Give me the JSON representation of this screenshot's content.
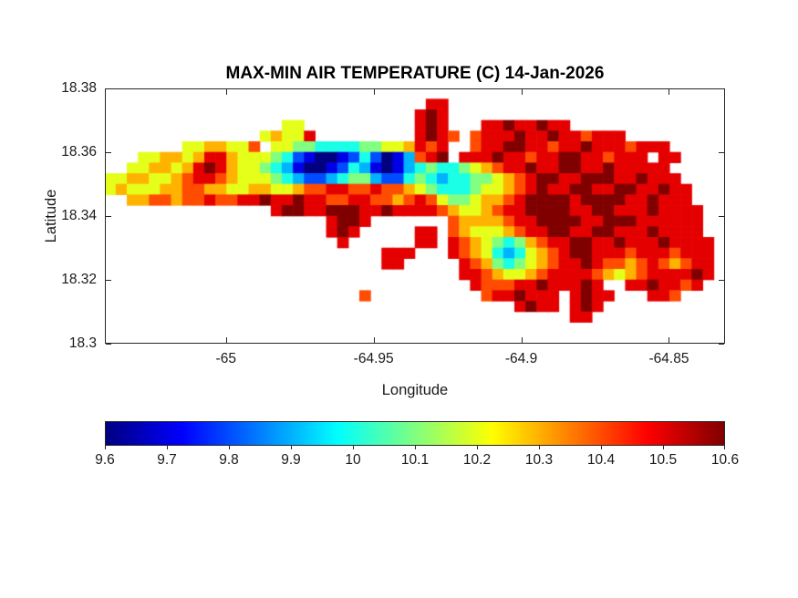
{
  "figure": {
    "background": "#ffffff"
  },
  "colors": {
    "axis": "#262626",
    "text": "#1a1a1a",
    "title": "#000000",
    "background": "#ffffff"
  },
  "chart_data": {
    "type": "heatmap",
    "title": "MAX-MIN AIR TEMPERATURE (C) 14-Jan-2026",
    "xlabel": "Longitude",
    "ylabel": "Latitude",
    "colormap": "jet",
    "grid_lines": false,
    "xlim": [
      -65.041,
      -64.831
    ],
    "ylim": [
      18.3,
      18.38
    ],
    "x_ticks": [
      -65,
      -64.95,
      -64.9,
      -64.85
    ],
    "x_tick_labels": [
      "-65",
      "-64.95",
      "-64.9",
      "-64.85"
    ],
    "y_ticks": [
      18.38,
      18.36,
      18.34,
      18.32,
      18.3
    ],
    "y_tick_labels": [
      "18.38",
      "18.36",
      "18.34",
      "18.32",
      "18.3"
    ],
    "colorbar": {
      "orientation": "horizontal",
      "clim": [
        9.6,
        10.6
      ],
      "ticks": [
        9.6,
        9.7,
        9.8,
        9.9,
        10,
        10.1,
        10.2,
        10.3,
        10.4,
        10.5,
        10.6
      ],
      "tick_labels": [
        "9.6",
        "9.7",
        "9.8",
        "9.9",
        "10",
        "10.1",
        "10.2",
        "10.3",
        "10.4",
        "10.5",
        "10.6"
      ]
    },
    "grid": {
      "cols": 56,
      "rows": 24,
      "encoding": "segments: r=row (0=top, lat 18.38), c=start column (0=left, lon -65.041); chars '0'-'9','a' map to temperature 9.6 + 0.1*index (C); cells not covered are water/no-data",
      "segments": [
        {
          "r": 1,
          "c": 29,
          "s": "99"
        },
        {
          "r": 2,
          "c": 28,
          "s": "9a9"
        },
        {
          "r": 3,
          "c": 16,
          "s": "66"
        },
        {
          "r": 3,
          "c": 28,
          "s": "9a9"
        },
        {
          "r": 3,
          "c": 34,
          "s": "99a99a99"
        },
        {
          "r": 4,
          "c": 14,
          "s": "67669"
        },
        {
          "r": 4,
          "c": 28,
          "s": "9a98"
        },
        {
          "r": 4,
          "c": 33,
          "s": "8999a99a998999"
        },
        {
          "r": 5,
          "c": 7,
          "s": "6677668"
        },
        {
          "r": 5,
          "c": 15,
          "s": "6655444455667"
        },
        {
          "r": 5,
          "c": 28,
          "s": "989"
        },
        {
          "r": 5,
          "c": 33,
          "s": "899aa99899a9998999"
        },
        {
          "r": 6,
          "c": 3,
          "s": "667767997666"
        },
        {
          "r": 6,
          "c": 15,
          "s": "5421001242013"
        },
        {
          "r": 6,
          "c": 28,
          "s": "89a"
        },
        {
          "r": 6,
          "c": 32,
          "s": "999a99899aa998999"
        },
        {
          "r": 6,
          "c": 50,
          "s": "99"
        },
        {
          "r": 7,
          "c": 2,
          "s": "6677679a97665"
        },
        {
          "r": 7,
          "c": 15,
          "s": "4310012431013"
        },
        {
          "r": 7,
          "c": 28,
          "s": "45445"
        },
        {
          "r": 7,
          "c": 33,
          "s": "67899a99aa99a99999"
        },
        {
          "r": 8,
          "c": 0,
          "s": "667766789987666"
        },
        {
          "r": 8,
          "c": 15,
          "s": "5432234553224"
        },
        {
          "r": 8,
          "c": 28,
          "s": "54344556"
        },
        {
          "r": 8,
          "c": 36,
          "s": "789aa99aaa99a999"
        },
        {
          "r": 9,
          "c": 0,
          "s": "676667788776677"
        },
        {
          "r": 9,
          "c": 15,
          "s": "6678899889887"
        },
        {
          "r": 9,
          "c": 28,
          "s": "65444566789"
        },
        {
          "r": 9,
          "c": 39,
          "s": "a99aa99aa99a99"
        },
        {
          "r": 10,
          "c": 2,
          "s": "778878898899a99a9988998878"
        },
        {
          "r": 10,
          "c": 28,
          "s": "98655677"
        },
        {
          "r": 10,
          "c": 36,
          "s": "89aaaa9aaaa99a999"
        },
        {
          "r": 11,
          "c": 15,
          "s": "9aa99aaa99a999987667899aaaa99aa999a9999"
        },
        {
          "r": 12,
          "c": 20,
          "s": "9aa9"
        },
        {
          "r": 12,
          "c": 31,
          "s": "87777899aaaa99aaa999999"
        },
        {
          "r": 13,
          "c": 20,
          "s": "9a9"
        },
        {
          "r": 13,
          "c": 28,
          "s": "99"
        },
        {
          "r": 13,
          "c": 31,
          "s": "876667899aa99aa999a9999"
        },
        {
          "r": 14,
          "c": 21,
          "s": "9"
        },
        {
          "r": 14,
          "c": 28,
          "s": "99"
        },
        {
          "r": 14,
          "c": 31,
          "s": "98765457899aa99a999a9999"
        },
        {
          "r": 15,
          "c": 25,
          "s": "999"
        },
        {
          "r": 15,
          "c": 31,
          "s": "98764346789aa99989998999"
        },
        {
          "r": 16,
          "c": 25,
          "s": "99"
        },
        {
          "r": 16,
          "c": 32,
          "s": "98754567899a98878987899"
        },
        {
          "r": 17,
          "c": 32,
          "s": "998766789999876789999a9"
        },
        {
          "r": 18,
          "c": 33,
          "s": "988899a99"
        },
        {
          "r": 18,
          "c": 42,
          "s": "9a9"
        },
        {
          "r": 18,
          "c": 47,
          "s": "99a9989"
        },
        {
          "r": 19,
          "c": 23,
          "s": "8"
        },
        {
          "r": 19,
          "c": 34,
          "s": "899a999"
        },
        {
          "r": 19,
          "c": 42,
          "s": "9a99"
        },
        {
          "r": 19,
          "c": 49,
          "s": "998"
        },
        {
          "r": 20,
          "c": 37,
          "s": "9a99"
        },
        {
          "r": 20,
          "c": 42,
          "s": "9a9"
        },
        {
          "r": 21,
          "c": 42,
          "s": "99"
        }
      ]
    }
  }
}
